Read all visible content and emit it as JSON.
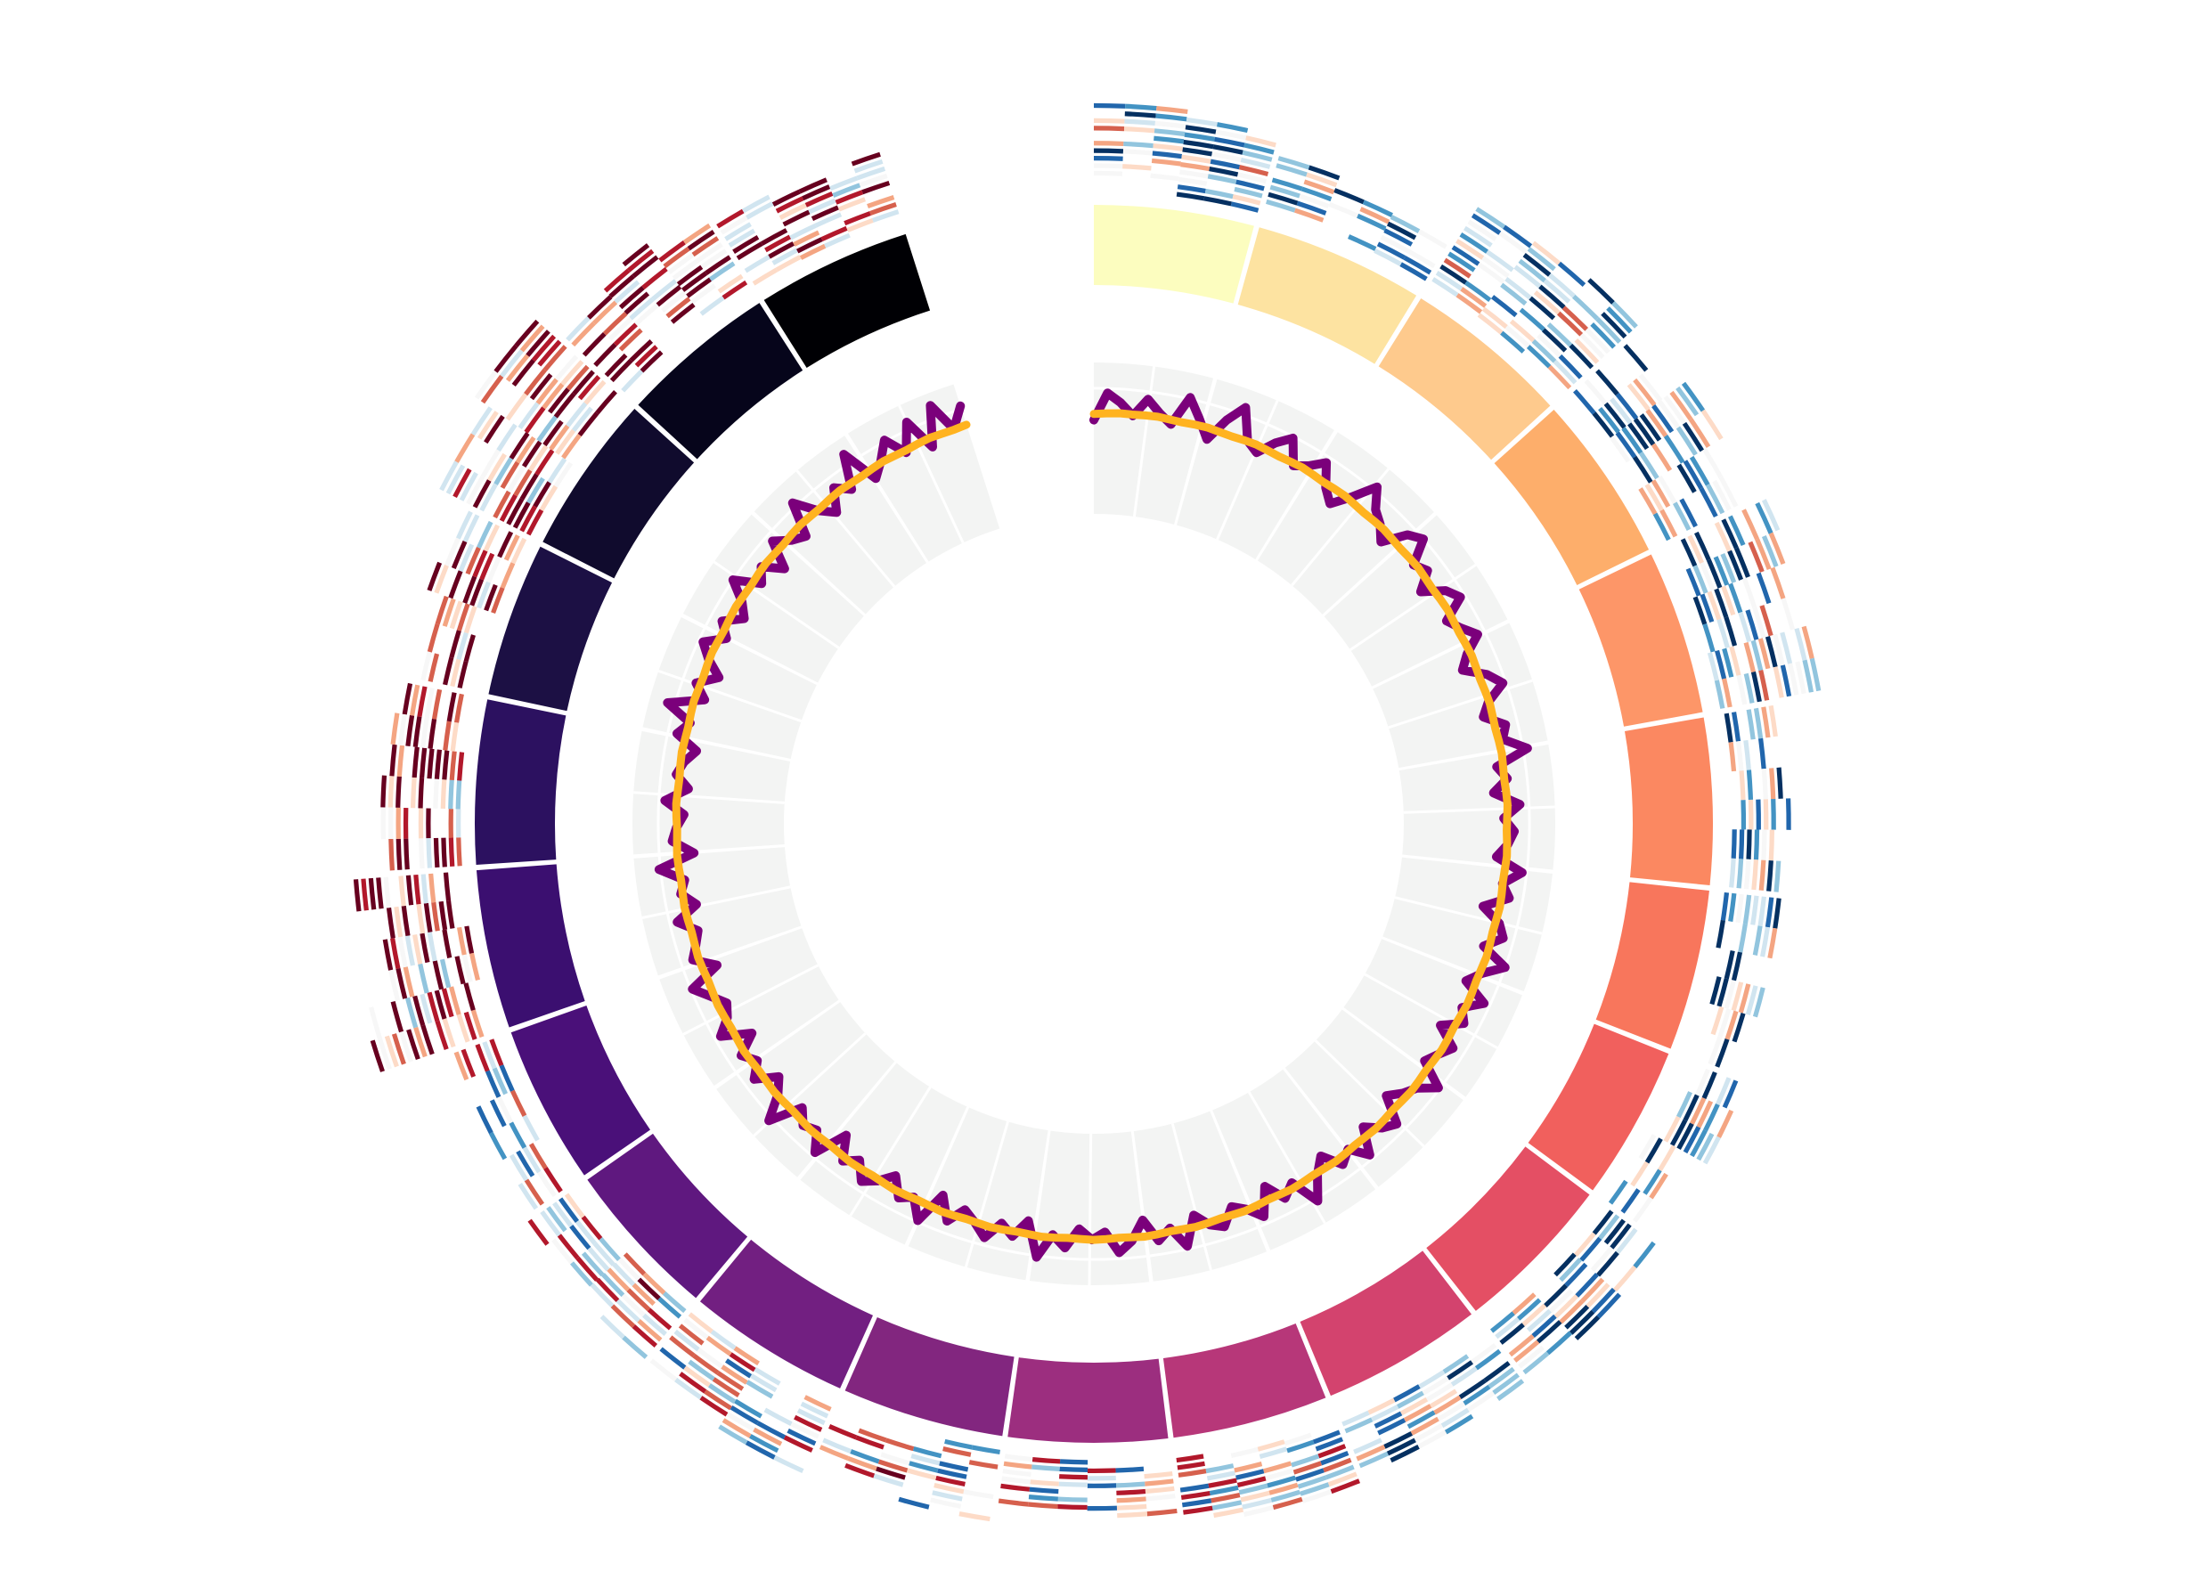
{
  "figure": {
    "background": "#ffffff"
  },
  "chart_data": {
    "type": "circos",
    "title": "",
    "legend": "none",
    "grid": true,
    "num_sectors": 22,
    "sector_colors": [
      "#fcfdbf",
      "#fde3a1",
      "#feca8d",
      "#fdae6b",
      "#fd9668",
      "#fb8861",
      "#f8765c",
      "#f1605d",
      "#e44f64",
      "#d3436e",
      "#b73779",
      "#9c2e7f",
      "#82267f",
      "#721f81",
      "#5f187f",
      "#4a1079",
      "#3b0f70",
      "#2c1160",
      "#1c1044",
      "#100b2d",
      "#06051b",
      "#000004"
    ],
    "sector_angles": [
      [
        0.0,
        15.0
      ],
      [
        15.5,
        31.4
      ],
      [
        31.9,
        47.5
      ],
      [
        48.0,
        63.7
      ],
      [
        64.2,
        79.6
      ],
      [
        80.1,
        95.7
      ],
      [
        96.2,
        111.3
      ],
      [
        111.8,
        126.3
      ],
      [
        126.8,
        141.9
      ],
      [
        142.4,
        157.5
      ],
      [
        158.0,
        172.6
      ],
      [
        173.1,
        188.0
      ],
      [
        188.5,
        203.7
      ],
      [
        204.2,
        219.5
      ],
      [
        220.0,
        234.9
      ],
      [
        235.4,
        250.3
      ],
      [
        250.8,
        265.7
      ],
      [
        266.2,
        281.6
      ],
      [
        282.1,
        296.6
      ],
      [
        297.1,
        312.1
      ],
      [
        312.6,
        327.3
      ],
      [
        327.8,
        342.3
      ]
    ],
    "line_track": {
      "series_colors": [
        "#7b007b",
        "#ffb320"
      ],
      "radius_range": [
        0,
        1
      ],
      "series": [
        {
          "values": [
            0.62,
            0.8,
            0.74,
            0.66,
            0.78,
            0.7,
            0.64,
            0.84,
            0.72,
            0.6,
            0.76,
            0.88,
            0.68,
            0.63,
            0.74,
            0.82,
            0.66,
            0.71,
            0.79,
            0.65,
            0.58,
            0.7,
            0.86,
            0.74,
            0.69,
            0.61,
            0.77,
            0.83,
            0.67,
            0.72,
            0.6,
            0.74,
            0.8,
            0.64,
            0.7,
            0.78,
            0.66,
            0.59,
            0.73,
            0.81,
            0.68,
            0.62,
            0.75,
            0.71,
            0.86,
            0.64,
            0.7,
            0.6,
            0.77,
            0.66,
            0.73,
            0.69,
            0.62,
            0.8,
            0.68,
            0.74,
            0.58,
            0.71,
            0.76,
            0.65,
            0.83,
            0.7,
            0.62,
            0.79,
            0.67,
            0.73,
            0.6,
            0.75,
            0.69,
            0.64,
            0.82,
            0.71,
            0.66,
            0.59,
            0.77,
            0.72,
            0.63,
            0.8,
            0.68,
            0.74,
            0.61,
            0.7,
            0.85,
            0.66,
            0.73,
            0.6,
            0.78,
            0.69,
            0.64,
            0.75,
            0.71,
            0.62,
            0.81,
            0.67,
            0.74,
            0.59,
            0.72,
            0.79,
            0.65,
            0.7,
            0.63,
            0.76,
            0.68,
            0.84,
            0.61,
            0.73,
            0.66,
            0.78,
            0.7,
            0.64,
            0.75,
            0.6,
            0.82,
            0.69,
            0.74,
            0.62,
            0.71,
            0.77,
            0.66,
            0.73,
            0.58,
            0.8,
            0.68,
            0.72,
            0.64,
            0.86,
            0.7,
            0.62,
            0.76,
            0.67,
            0.74,
            0.6,
            0.79,
            0.69,
            0.65,
            0.73,
            0.82,
            0.61,
            0.75,
            0.7,
            0.66,
            0.78,
            0.63,
            0.72,
            0.68,
            0.84,
            0.6,
            0.74,
            0.71,
            0.66,
            0.79,
            0.64,
            0.73,
            0.69,
            0.62,
            0.77,
            0.7,
            0.88,
            0.65,
            0.74,
            0.61,
            0.72,
            0.8,
            0.67,
            0.75,
            0.63,
            0.7,
            0.83,
            0.66,
            0.73,
            0.6,
            0.78,
            0.69,
            0.64,
            0.86,
            0.71,
            0.62,
            0.76,
            0.68,
            0.9,
            0.65,
            0.73,
            0.84,
            0.7,
            0.88,
            0.66,
            0.92,
            0.72,
            0.85
          ],
          "drawing_note": ""
        },
        {
          "values": [
            0.66,
            0.665,
            0.67,
            0.668,
            0.672,
            0.675,
            0.67,
            0.668,
            0.673,
            0.676,
            0.671,
            0.669,
            0.674,
            0.678,
            0.673,
            0.67,
            0.675,
            0.68,
            0.676,
            0.672,
            0.677,
            0.681,
            0.676,
            0.673,
            0.678,
            0.682,
            0.677,
            0.674,
            0.679,
            0.683,
            0.678,
            0.675,
            0.68,
            0.684,
            0.679,
            0.676,
            0.681,
            0.685,
            0.68,
            0.677,
            0.682,
            0.686,
            0.681,
            0.678,
            0.683,
            0.687,
            0.682,
            0.679,
            0.684,
            0.688,
            0.683,
            0.68,
            0.685,
            0.689,
            0.684,
            0.681,
            0.686,
            0.69,
            0.685,
            0.682,
            0.687,
            0.691,
            0.686,
            0.683,
            0.688,
            0.692,
            0.687,
            0.684,
            0.689,
            0.693,
            0.688,
            0.685,
            0.69,
            0.694,
            0.689,
            0.686,
            0.691,
            0.695,
            0.69,
            0.687,
            0.692,
            0.696,
            0.691,
            0.688,
            0.693,
            0.697,
            0.692,
            0.689,
            0.694,
            0.698,
            0.693,
            0.69,
            0.695,
            0.699,
            0.694,
            0.691,
            0.696,
            0.7,
            0.695,
            0.692,
            0.697,
            0.701,
            0.696,
            0.693,
            0.698,
            0.702,
            0.697,
            0.694,
            0.699,
            0.703,
            0.698,
            0.695,
            0.7,
            0.704,
            0.699,
            0.696,
            0.701,
            0.705,
            0.7,
            0.697,
            0.702,
            0.706,
            0.701,
            0.698,
            0.703,
            0.707,
            0.702,
            0.699,
            0.704,
            0.708,
            0.703,
            0.7,
            0.705,
            0.709,
            0.704,
            0.701,
            0.706,
            0.71,
            0.705,
            0.702,
            0.707,
            0.711,
            0.706,
            0.703,
            0.708,
            0.712,
            0.707,
            0.704,
            0.709,
            0.713,
            0.708,
            0.705,
            0.71,
            0.714,
            0.709,
            0.706,
            0.711,
            0.715,
            0.71,
            0.707,
            0.712,
            0.716,
            0.711,
            0.708,
            0.713,
            0.717,
            0.712,
            0.709,
            0.714,
            0.718,
            0.713,
            0.71,
            0.715,
            0.719,
            0.714,
            0.711,
            0.716,
            0.72,
            0.715,
            0.712,
            0.717,
            0.721,
            0.716,
            0.713,
            0.718,
            0.722,
            0.717,
            0.714,
            0.719,
            0.723,
            0.718,
            0.715,
            0.72
          ]
        }
      ]
    },
    "heatmap_track": {
      "colormap": "RdBu_r",
      "value_range": [
        -1,
        1
      ],
      "description": ""
    }
  }
}
